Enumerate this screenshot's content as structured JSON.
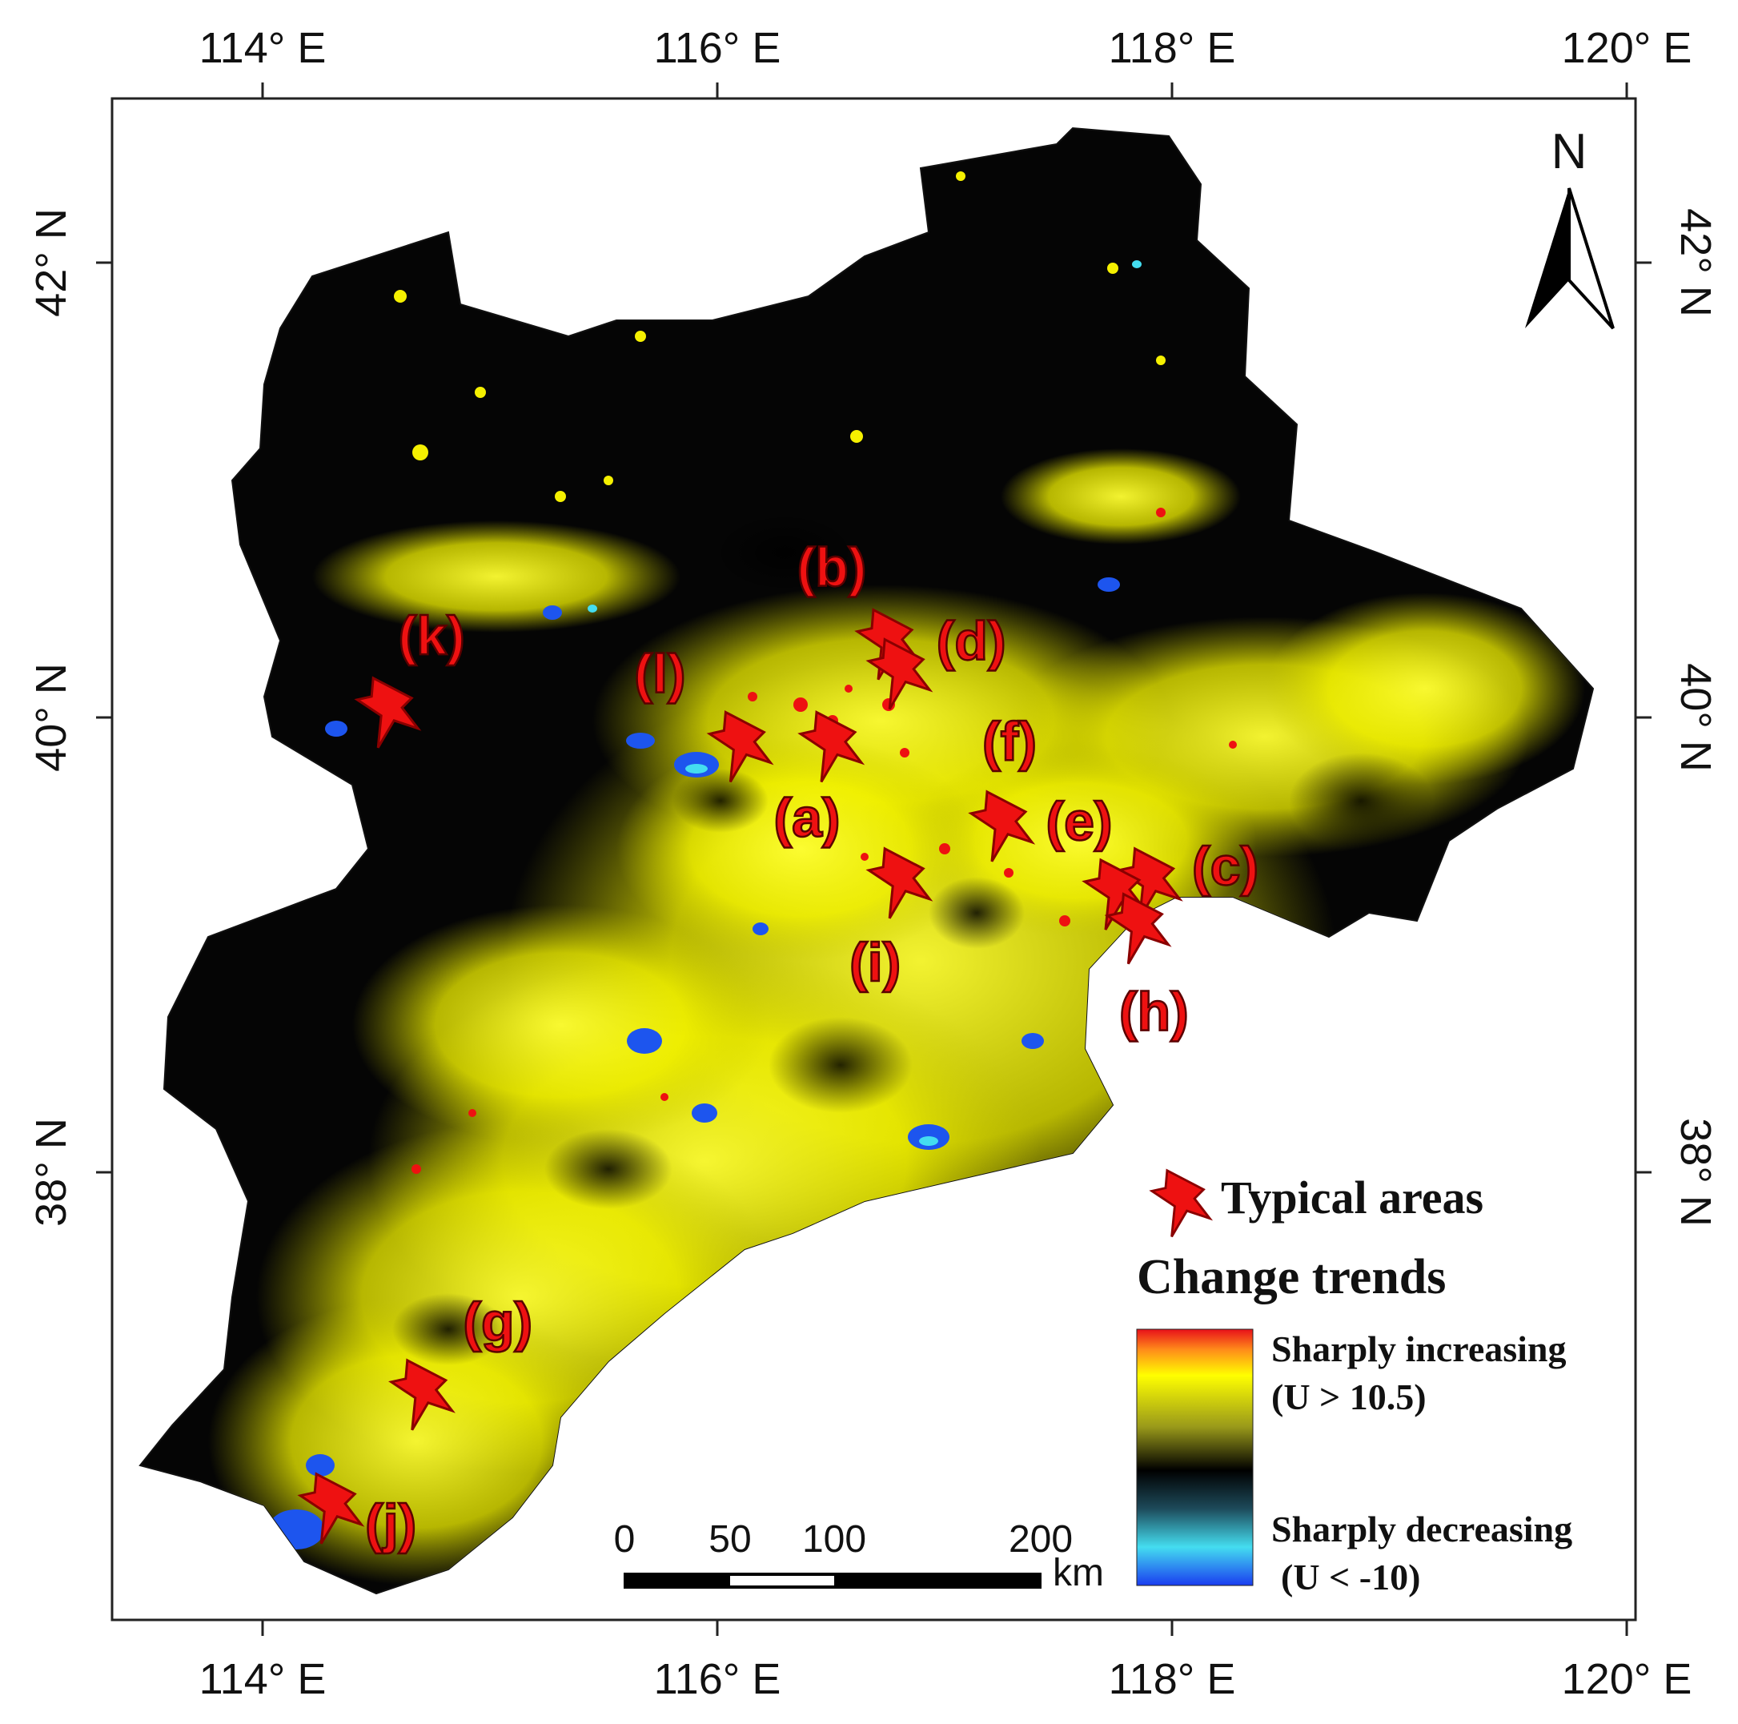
{
  "map": {
    "lon_ticks": [
      "114° E",
      "116° E",
      "118° E",
      "120° E"
    ],
    "lat_ticks": [
      "42° N",
      "40° N",
      "38° N"
    ],
    "north_label": "N"
  },
  "sites": [
    {
      "id": "a",
      "label": "(a)",
      "lon": 116.5,
      "lat": 39.9
    },
    {
      "id": "b",
      "label": "(b)",
      "lon": 116.75,
      "lat": 40.35
    },
    {
      "id": "c",
      "label": "(c)",
      "lon": 117.9,
      "lat": 39.3
    },
    {
      "id": "d",
      "label": "(d)",
      "lon": 116.8,
      "lat": 40.22
    },
    {
      "id": "e",
      "label": "(e)",
      "lon": 117.75,
      "lat": 39.25
    },
    {
      "id": "f",
      "label": "(f)",
      "lon": 117.25,
      "lat": 39.55
    },
    {
      "id": "g",
      "label": "(g)",
      "lon": 114.7,
      "lat": 37.05
    },
    {
      "id": "h",
      "label": "(h)",
      "lon": 117.85,
      "lat": 39.1
    },
    {
      "id": "i",
      "label": "(i)",
      "lon": 116.8,
      "lat": 39.3
    },
    {
      "id": "j",
      "label": "(j)",
      "lon": 114.3,
      "lat": 36.55
    },
    {
      "id": "k",
      "label": "(k)",
      "lon": 114.55,
      "lat": 40.05
    },
    {
      "id": "l",
      "label": "(l)",
      "lon": 116.1,
      "lat": 39.9
    }
  ],
  "legend": {
    "marker_label": "Typical areas",
    "title": "Change trends",
    "high_label": "Sharply increasing",
    "high_cond": "(U > 10.5)",
    "low_label": "Sharply decreasing",
    "low_cond": "(U < -10)",
    "colors": {
      "sharply_increasing": "#ee1111",
      "increasing": "#ffff00",
      "no_change": "#000000",
      "decreasing": "#33ccee",
      "sharply_decreasing": "#1144ee",
      "marker": "#ee1111"
    }
  },
  "scale_bar": {
    "ticks": [
      "0",
      "50",
      "100",
      "200"
    ],
    "unit": "km"
  }
}
